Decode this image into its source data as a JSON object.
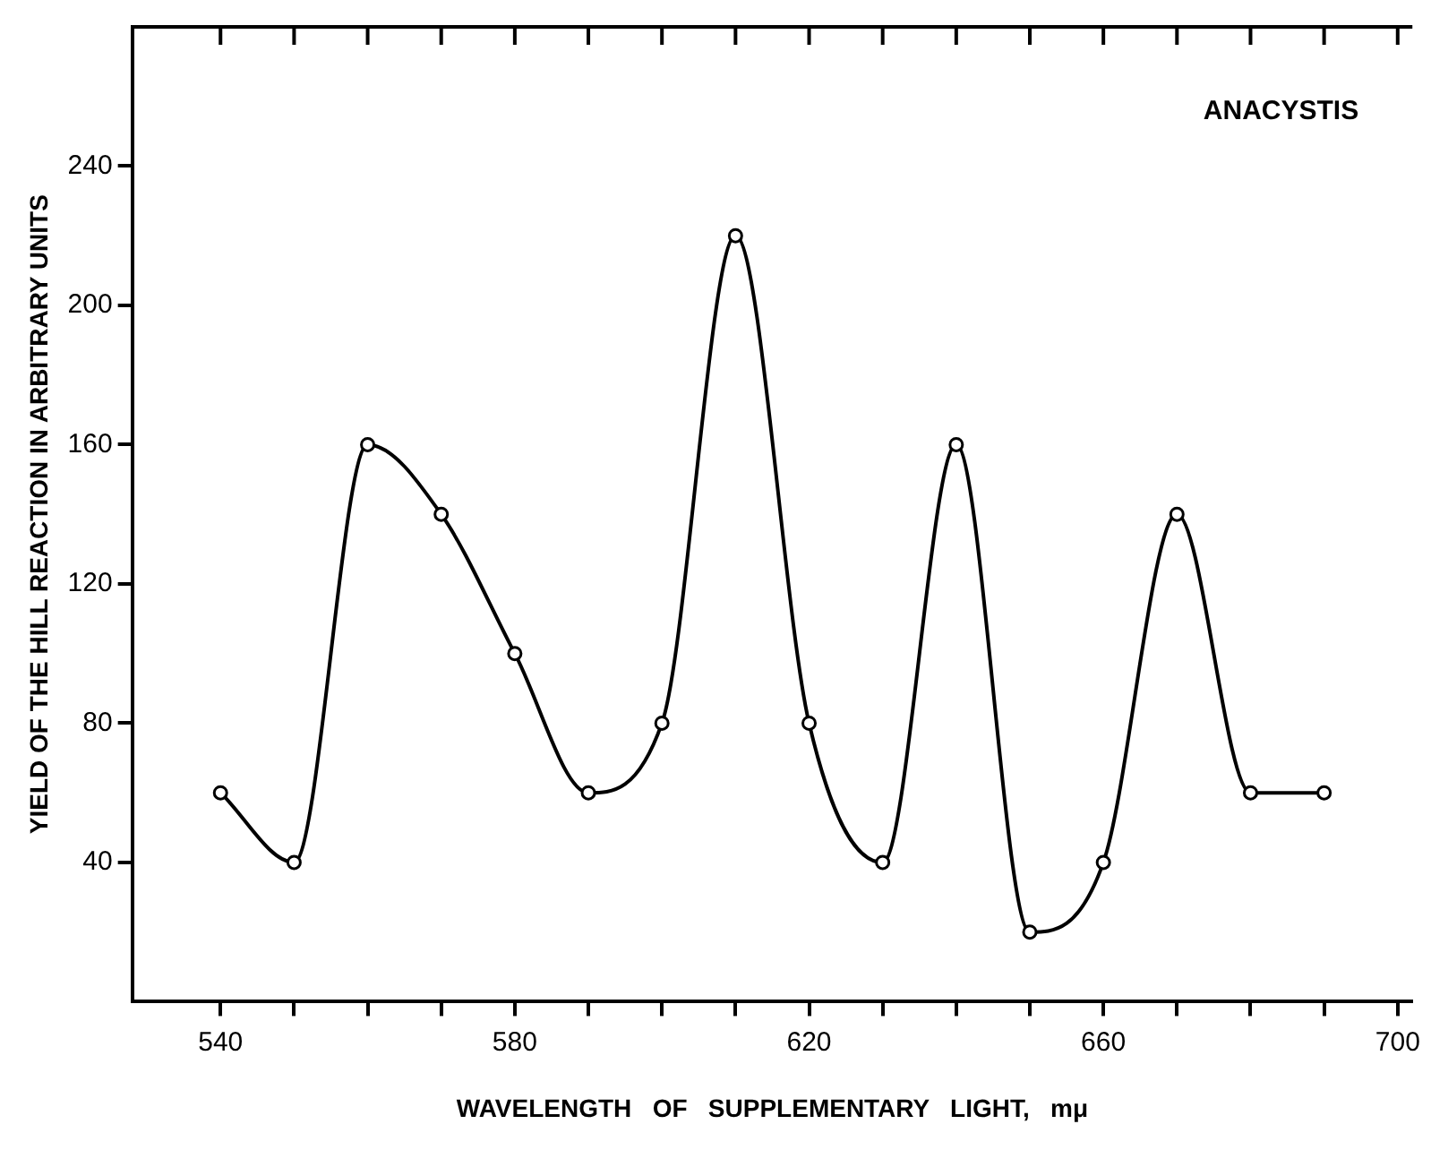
{
  "chart_data": {
    "type": "line",
    "xlabel": "WAVELENGTH   OF   SUPPLEMENTARY   LIGHT,   mμ",
    "ylabel": "YIELD OF THE HILL REACTION IN ARBITRARY UNITS",
    "annotations": [
      "ANACYSTIS"
    ],
    "x": [
      540,
      550,
      560,
      570,
      580,
      590,
      600,
      610,
      620,
      630,
      640,
      650,
      660,
      670,
      680,
      690
    ],
    "series": [
      {
        "color": "#000000",
        "values": [
          60,
          40,
          160,
          140,
          100,
          60,
          80,
          220,
          80,
          40,
          160,
          20,
          40,
          140,
          60,
          60
        ]
      }
    ],
    "xlim": [
      528,
      702
    ],
    "xticks": [
      540,
      {
        "value": 550,
        "label": null
      },
      {
        "value": 560,
        "label": null
      },
      {
        "value": 570,
        "label": null
      },
      580,
      {
        "value": 590,
        "label": null
      },
      {
        "value": 600,
        "label": null
      },
      {
        "value": 610,
        "label": null
      },
      620,
      {
        "value": 630,
        "label": null
      },
      {
        "value": 640,
        "label": null
      },
      {
        "value": 650,
        "label": null
      },
      660,
      {
        "value": 670,
        "label": null
      },
      {
        "value": 680,
        "label": null
      },
      {
        "value": 690,
        "label": null
      },
      700
    ],
    "ylim": [
      0,
      280
    ],
    "yticks": [
      40,
      80,
      120,
      160,
      200,
      240
    ],
    "grid": false,
    "legend": false,
    "marker": "circle",
    "line_style": "solid"
  }
}
